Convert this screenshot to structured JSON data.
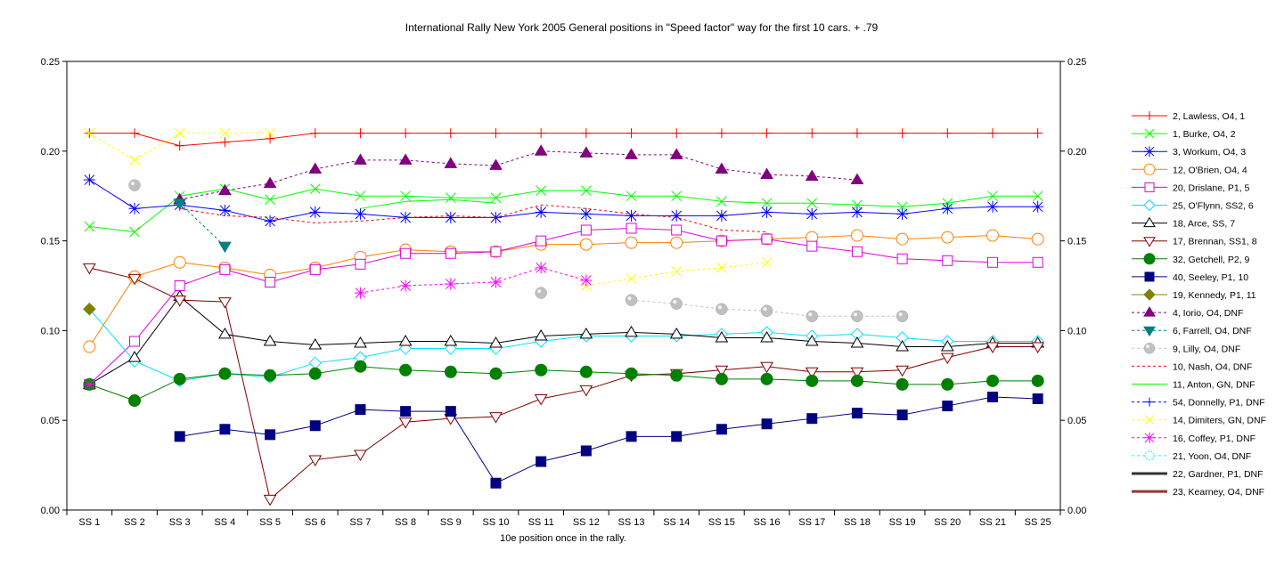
{
  "chart_data": {
    "type": "line",
    "title": "International Rally New York 2005  General positions in \"Speed factor\" way for the first 10 cars. + .79",
    "xlabel": "10e position once in the rally.",
    "ylabel": "",
    "ylim": [
      0,
      0.25
    ],
    "yticks": [
      "0.00",
      "0.05",
      "0.10",
      "0.15",
      "0.20",
      "0.25"
    ],
    "grid": false,
    "legend_position": "right",
    "categories": [
      "SS 1",
      "SS 2",
      "SS 3",
      "SS 4",
      "SS 5",
      "SS 6",
      "SS 7",
      "SS 8",
      "SS 9",
      "SS 10",
      "SS 11",
      "SS 12",
      "SS 13",
      "SS 14",
      "SS 15",
      "SS 16",
      "SS 17",
      "SS 18",
      "SS 19",
      "SS 20",
      "SS 21",
      "SS 25"
    ],
    "series": [
      {
        "name": "2, Lawless, O4, 1",
        "color": "#ff0000",
        "marker": "plus",
        "dash": "solid",
        "values": [
          0.21,
          0.21,
          0.203,
          0.205,
          0.207,
          0.21,
          0.21,
          0.21,
          0.21,
          0.21,
          0.21,
          0.21,
          0.21,
          0.21,
          0.21,
          0.21,
          0.21,
          0.21,
          0.21,
          0.21,
          0.21,
          0.21
        ]
      },
      {
        "name": "1, Burke, O4, 2",
        "color": "#00ff00",
        "marker": "x",
        "dash": "solid",
        "values": [
          0.158,
          0.155,
          0.175,
          0.179,
          0.173,
          0.179,
          0.175,
          0.175,
          0.174,
          0.174,
          0.178,
          0.178,
          0.175,
          0.175,
          0.172,
          0.171,
          0.171,
          0.17,
          0.169,
          0.171,
          0.175,
          0.175
        ]
      },
      {
        "name": "3, Workum, O4, 3",
        "color": "#0000ff",
        "marker": "asterisk",
        "dash": "solid",
        "values": [
          0.184,
          0.168,
          0.17,
          0.167,
          0.161,
          0.166,
          0.165,
          0.163,
          0.163,
          0.163,
          0.166,
          0.165,
          0.164,
          0.164,
          0.164,
          0.166,
          0.165,
          0.166,
          0.165,
          0.168,
          0.169,
          0.169
        ]
      },
      {
        "name": "12, O'Brien, O4, 4",
        "color": "#ff8000",
        "marker": "circle-open",
        "dash": "solid",
        "values": [
          0.091,
          0.13,
          0.138,
          0.135,
          0.131,
          0.135,
          0.141,
          0.145,
          0.144,
          0.144,
          0.148,
          0.148,
          0.149,
          0.149,
          0.15,
          0.151,
          0.152,
          0.153,
          0.151,
          0.152,
          0.153,
          0.151
        ]
      },
      {
        "name": "20, Drislane, P1, 5",
        "color": "#e000e0",
        "marker": "square-open",
        "dash": "solid",
        "values": [
          0.07,
          0.094,
          0.125,
          0.134,
          0.127,
          0.134,
          0.137,
          0.143,
          0.143,
          0.144,
          0.15,
          0.156,
          0.157,
          0.156,
          0.15,
          0.151,
          0.147,
          0.144,
          0.14,
          0.139,
          0.138,
          0.138
        ]
      },
      {
        "name": "25, O'Flynn, SS2, 6",
        "color": "#00e0ff",
        "marker": "diamond-open",
        "dash": "solid",
        "values": [
          0.112,
          0.083,
          0.072,
          0.076,
          0.074,
          0.082,
          0.085,
          0.09,
          0.09,
          0.09,
          0.094,
          0.097,
          0.097,
          0.097,
          0.098,
          0.099,
          0.097,
          0.098,
          0.096,
          0.094,
          0.094,
          0.094
        ]
      },
      {
        "name": "18, Arce, SS, 7",
        "color": "#000000",
        "marker": "triangle-open",
        "dash": "solid",
        "values": [
          0.07,
          0.085,
          0.119,
          0.098,
          0.094,
          0.092,
          0.093,
          0.094,
          0.094,
          0.093,
          0.097,
          0.098,
          0.099,
          0.098,
          0.096,
          0.096,
          0.094,
          0.093,
          0.091,
          0.091,
          0.093,
          0.093
        ]
      },
      {
        "name": "17, Brennan, SS1, 8",
        "color": "#800000",
        "marker": "triangle-down-open",
        "dash": "solid",
        "values": [
          0.135,
          0.129,
          0.117,
          0.116,
          0.006,
          0.028,
          0.031,
          0.049,
          0.051,
          0.052,
          0.062,
          0.067,
          0.075,
          0.076,
          0.078,
          0.08,
          0.077,
          0.077,
          0.078,
          0.085,
          0.091,
          0.091
        ]
      },
      {
        "name": "32, Getchell, P2, 9",
        "color": "#008000",
        "marker": "circle-filled",
        "dash": "solid",
        "values": [
          0.07,
          0.061,
          0.073,
          0.076,
          0.075,
          0.076,
          0.08,
          0.078,
          0.077,
          0.076,
          0.078,
          0.077,
          0.076,
          0.075,
          0.073,
          0.073,
          0.072,
          0.072,
          0.07,
          0.07,
          0.072,
          0.072
        ]
      },
      {
        "name": "40, Seeley, P1, 10",
        "color": "#000080",
        "marker": "square-filled",
        "dash": "solid",
        "values": [
          null,
          null,
          0.041,
          0.045,
          0.042,
          0.047,
          0.056,
          0.055,
          0.055,
          0.015,
          0.027,
          0.033,
          0.041,
          0.041,
          0.045,
          0.048,
          0.051,
          0.054,
          0.053,
          0.058,
          0.063,
          0.062
        ]
      },
      {
        "name": "19, Kennedy, P1, 11",
        "color": "#808000",
        "marker": "diamond-filled",
        "dash": "solid",
        "values": [
          0.112,
          null,
          null,
          null,
          null,
          null,
          null,
          null,
          null,
          null,
          null,
          null,
          null,
          null,
          null,
          null,
          null,
          null,
          null,
          null,
          null,
          null
        ]
      },
      {
        "name": "4, Iorio, O4, DNF",
        "color": "#800080",
        "marker": "triangle-filled",
        "dash": "dashed",
        "values": [
          null,
          null,
          0.173,
          0.178,
          0.182,
          0.19,
          0.195,
          0.195,
          0.193,
          0.192,
          0.2,
          0.199,
          0.198,
          0.198,
          0.19,
          0.187,
          0.186,
          0.184,
          null,
          null,
          null,
          null
        ]
      },
      {
        "name": "6, Farrell, O4, DNF",
        "color": "#008080",
        "marker": "triangle-down-filled",
        "dash": "dashed",
        "values": [
          null,
          null,
          0.171,
          0.147,
          null,
          null,
          null,
          null,
          null,
          null,
          null,
          null,
          null,
          null,
          null,
          null,
          null,
          null,
          null,
          null,
          null,
          null
        ]
      },
      {
        "name": "9, Lilly, O4, DNF",
        "color": "#c0c0c0",
        "marker": "sphere",
        "dash": "dashed",
        "values": [
          null,
          0.181,
          null,
          null,
          null,
          null,
          null,
          null,
          null,
          null,
          0.121,
          null,
          0.117,
          0.115,
          0.112,
          0.111,
          0.108,
          0.108,
          0.108,
          null,
          null,
          null
        ]
      },
      {
        "name": "10, Nash, O4, DNF",
        "color": "#ff0000",
        "marker": "none",
        "dash": "dashed",
        "values": [
          null,
          null,
          0.168,
          0.164,
          0.163,
          0.16,
          0.161,
          0.163,
          0.164,
          0.163,
          0.17,
          0.168,
          0.165,
          0.163,
          0.156,
          0.155,
          null,
          null,
          null,
          null,
          null,
          null
        ]
      },
      {
        "name": "11, Anton, GN, DNF",
        "color": "#00ff00",
        "marker": "none",
        "dash": "solid",
        "values": [
          null,
          null,
          null,
          null,
          null,
          null,
          0.168,
          0.172,
          0.173,
          0.171,
          null,
          null,
          null,
          null,
          null,
          null,
          null,
          null,
          null,
          null,
          null,
          null
        ]
      },
      {
        "name": "54, Donnelly, P1, DNF",
        "color": "#0000ff",
        "marker": "plus",
        "dash": "dashed",
        "values": [
          null,
          null,
          null,
          null,
          null,
          null,
          null,
          null,
          null,
          null,
          null,
          null,
          null,
          null,
          null,
          null,
          null,
          null,
          null,
          null,
          null,
          null
        ]
      },
      {
        "name": "14, Dimiters, GN, DNF",
        "color": "#ffff00",
        "marker": "x",
        "dash": "dashed",
        "values": [
          0.21,
          0.195,
          0.21,
          0.21,
          0.21,
          null,
          null,
          null,
          null,
          null,
          null,
          0.125,
          0.129,
          0.133,
          0.135,
          0.138,
          null,
          null,
          null,
          null,
          null,
          null
        ]
      },
      {
        "name": "16, Coffey, P1, DNF",
        "color": "#ff00ff",
        "marker": "asterisk",
        "dash": "dashed",
        "values": [
          0.07,
          null,
          null,
          null,
          null,
          null,
          0.121,
          0.125,
          0.126,
          0.127,
          0.135,
          0.128,
          null,
          null,
          null,
          null,
          null,
          null,
          null,
          null,
          null,
          null
        ]
      },
      {
        "name": "21, Yoon, O4, DNF",
        "color": "#00ffff",
        "marker": "circle-dotted",
        "dash": "dashed",
        "values": [
          null,
          null,
          null,
          null,
          null,
          null,
          null,
          null,
          null,
          null,
          null,
          null,
          null,
          null,
          null,
          null,
          null,
          null,
          null,
          null,
          null,
          null
        ]
      },
      {
        "name": "22, Gardner, P1, DNF",
        "color": "#333333",
        "marker": "none",
        "dash": "thick",
        "values": [
          null,
          null,
          null,
          null,
          null,
          null,
          null,
          null,
          null,
          null,
          null,
          null,
          null,
          null,
          null,
          null,
          null,
          null,
          null,
          null,
          null,
          null
        ]
      },
      {
        "name": "23, Kearney, O4, DNF",
        "color": "#993333",
        "marker": "none",
        "dash": "thick",
        "values": [
          null,
          null,
          null,
          null,
          null,
          null,
          null,
          null,
          null,
          null,
          null,
          null,
          null,
          null,
          null,
          null,
          null,
          null,
          null,
          null,
          null,
          null
        ]
      }
    ]
  }
}
